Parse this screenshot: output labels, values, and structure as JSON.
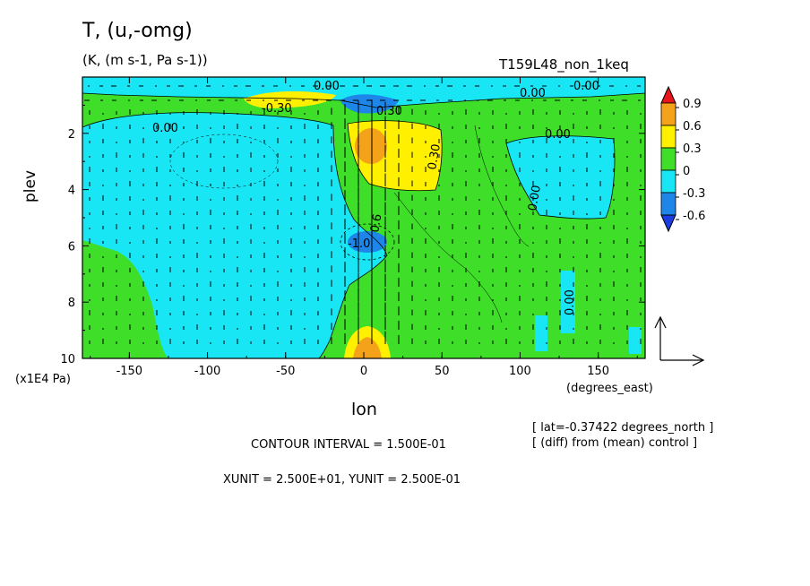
{
  "header": {
    "title": "T, (u,-omg)",
    "units": "(K, (m s-1, Pa s-1))",
    "run": "T159L48_non_1keq"
  },
  "axes": {
    "xlabel": "lon",
    "ylabel": "plev",
    "xunit_label": "(degrees_east)",
    "yunit_label": "(x1E4 Pa)"
  },
  "info": {
    "slice": "[ lat=-0.37422 degrees_north ]",
    "diff": "[ (diff) from (mean) control ]",
    "contour": "CONTOUR INTERVAL = 1.500E-01",
    "units_line": "XUNIT = 2.500E+01, YUNIT = 2.500E-01"
  },
  "colors": {
    "ge_0.9": "#e8141c",
    "0.6_0.9": "#f5a21b",
    "0.3_0.6": "#fff000",
    "0_0.3": "#3fde28",
    "-0.3_0": "#19e6f5",
    "-0.6_-0.3": "#1d86e8",
    "lt_-0.6": "#1d3ce0"
  },
  "chart_data": {
    "type": "heatmap",
    "title": "T, (u,-omg)",
    "xlabel": "lon",
    "ylabel": "plev",
    "xlim": [
      -180,
      180
    ],
    "ylim": [
      10,
      0
    ],
    "x_ticks": [
      "-150",
      "-100",
      "-50",
      "0",
      "50",
      "100",
      "150"
    ],
    "y_ticks": [
      "2",
      "4",
      "6",
      "8",
      "10"
    ],
    "colorbar": {
      "levels": [
        "0.9",
        "0.6",
        "0.3",
        "0",
        "-0.3",
        "-0.6"
      ]
    },
    "contour_labels": [
      "0.00",
      "0.00",
      "0.00",
      "0.00",
      "0.00",
      "0.00",
      "0.00",
      "-0.30",
      "0.30",
      "0.30",
      "-1.0",
      "0.6"
    ],
    "contour_interval": 0.15,
    "vector_units": {
      "x": 25,
      "y": 0.25
    },
    "overlay": "wind vectors (u, -omg)"
  }
}
